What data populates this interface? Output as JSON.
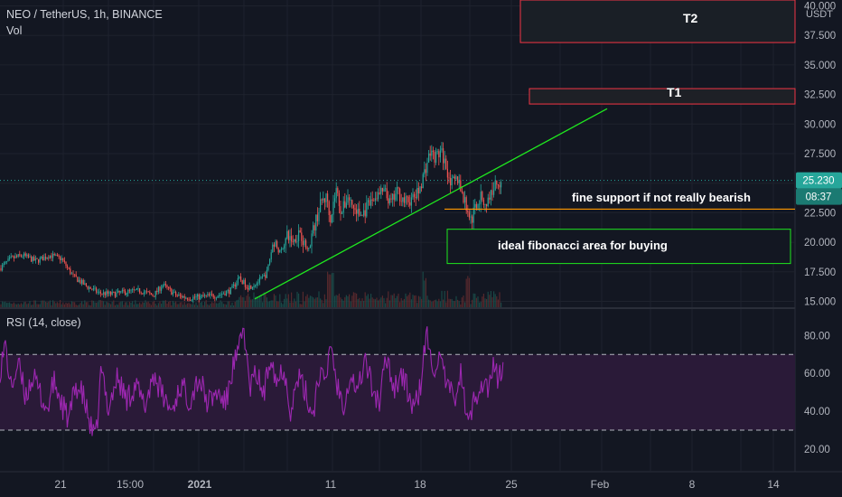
{
  "header": {
    "symbol_title": "NEO / TetherUS, 1h, BINANCE",
    "volume_label": "Vol"
  },
  "price_axis": {
    "currency": "USDT",
    "ticks": [
      "40.000",
      "37.500",
      "35.000",
      "32.500",
      "30.000",
      "27.500",
      "25.000",
      "22.500",
      "20.000",
      "17.500",
      "15.000"
    ],
    "last_price": "25.230",
    "countdown": "08:37"
  },
  "rsi": {
    "label": "RSI (14, close)",
    "ticks": [
      "80.00",
      "60.00",
      "40.00",
      "20.00"
    ],
    "upper_band": 70,
    "lower_band": 30
  },
  "time_axis": {
    "labels": [
      "21",
      "15:00",
      "2021",
      "11",
      "18",
      "25",
      "Feb",
      "8",
      "14"
    ]
  },
  "annotations": {
    "t1": "T1",
    "t2": "T2",
    "support_note": "fine support if not really bearish",
    "fib_note": "ideal fibonacci area for buying"
  },
  "colors": {
    "background": "#131722",
    "up": "#26a69a",
    "down": "#ef5350",
    "trendline": "#1fe81f",
    "rsi_line": "#9c27b0",
    "rsi_fill": "#2a1a38",
    "target_box": "#f23645",
    "fib_box": "#1fe81f",
    "support_line": "#ff9800",
    "last_price_tag": "#26a69a",
    "last_price_dotted": "#26a69a"
  },
  "chart_data": {
    "type": "candlestick",
    "symbol": "NEO / TetherUS",
    "interval": "1h",
    "exchange": "BINANCE",
    "ylim": [
      14.5,
      40.5
    ],
    "last_price": 25.23,
    "price_path": [
      [
        0,
        17.8
      ],
      [
        12,
        18.6
      ],
      [
        25,
        18.9
      ],
      [
        40,
        18.4
      ],
      [
        55,
        18.9
      ],
      [
        68,
        18.6
      ],
      [
        80,
        17.2
      ],
      [
        95,
        16.3
      ],
      [
        110,
        15.7
      ],
      [
        125,
        15.6
      ],
      [
        140,
        15.8
      ],
      [
        155,
        15.9
      ],
      [
        170,
        15.5
      ],
      [
        180,
        16.4
      ],
      [
        195,
        15.5
      ],
      [
        210,
        15.3
      ],
      [
        225,
        15.4
      ],
      [
        240,
        15.5
      ],
      [
        255,
        15.9
      ],
      [
        265,
        16.9
      ],
      [
        275,
        16.2
      ],
      [
        285,
        16.6
      ],
      [
        295,
        17.3
      ],
      [
        303,
        20.2
      ],
      [
        310,
        19.1
      ],
      [
        318,
        20.5
      ],
      [
        325,
        20.1
      ],
      [
        332,
        21.0
      ],
      [
        340,
        19.3
      ],
      [
        348,
        21.4
      ],
      [
        356,
        23.5
      ],
      [
        362,
        23.8
      ],
      [
        366,
        22.0
      ],
      [
        372,
        24.5
      ],
      [
        378,
        22.5
      ],
      [
        385,
        23.9
      ],
      [
        392,
        22.8
      ],
      [
        400,
        22.2
      ],
      [
        408,
        23.1
      ],
      [
        416,
        23.9
      ],
      [
        425,
        24.3
      ],
      [
        432,
        23.2
      ],
      [
        440,
        24.3
      ],
      [
        448,
        23.4
      ],
      [
        456,
        23.6
      ],
      [
        463,
        24.2
      ],
      [
        470,
        26.0
      ],
      [
        476,
        27.6
      ],
      [
        482,
        27.2
      ],
      [
        488,
        27.7
      ],
      [
        493,
        26.6
      ],
      [
        500,
        24.9
      ],
      [
        507,
        25.4
      ],
      [
        513,
        23.7
      ],
      [
        518,
        22.6
      ],
      [
        522,
        21.8
      ],
      [
        526,
        23.1
      ],
      [
        532,
        23.8
      ],
      [
        538,
        23.2
      ],
      [
        544,
        24.2
      ],
      [
        549,
        25.0
      ],
      [
        555,
        25.23
      ]
    ],
    "rsi_path": [
      [
        0,
        62
      ],
      [
        6,
        75
      ],
      [
        12,
        52
      ],
      [
        20,
        65
      ],
      [
        28,
        48
      ],
      [
        36,
        58
      ],
      [
        44,
        50
      ],
      [
        52,
        40
      ],
      [
        60,
        56
      ],
      [
        68,
        44
      ],
      [
        76,
        35
      ],
      [
        84,
        54
      ],
      [
        92,
        48
      ],
      [
        100,
        32
      ],
      [
        106,
        24
      ],
      [
        112,
        62
      ],
      [
        120,
        42
      ],
      [
        130,
        58
      ],
      [
        140,
        46
      ],
      [
        150,
        54
      ],
      [
        160,
        42
      ],
      [
        170,
        60
      ],
      [
        180,
        48
      ],
      [
        190,
        40
      ],
      [
        200,
        54
      ],
      [
        210,
        46
      ],
      [
        220,
        58
      ],
      [
        230,
        44
      ],
      [
        240,
        50
      ],
      [
        250,
        44
      ],
      [
        258,
        64
      ],
      [
        264,
        70
      ],
      [
        270,
        85
      ],
      [
        276,
        52
      ],
      [
        284,
        60
      ],
      [
        292,
        48
      ],
      [
        300,
        72
      ],
      [
        306,
        55
      ],
      [
        314,
        64
      ],
      [
        322,
        40
      ],
      [
        330,
        58
      ],
      [
        338,
        50
      ],
      [
        346,
        38
      ],
      [
        354,
        62
      ],
      [
        360,
        52
      ],
      [
        366,
        78
      ],
      [
        372,
        56
      ],
      [
        380,
        44
      ],
      [
        388,
        60
      ],
      [
        396,
        50
      ],
      [
        404,
        68
      ],
      [
        412,
        52
      ],
      [
        420,
        44
      ],
      [
        428,
        70
      ],
      [
        436,
        52
      ],
      [
        444,
        60
      ],
      [
        452,
        50
      ],
      [
        458,
        40
      ],
      [
        466,
        54
      ],
      [
        472,
        82
      ],
      [
        478,
        62
      ],
      [
        486,
        68
      ],
      [
        494,
        54
      ],
      [
        502,
        46
      ],
      [
        510,
        60
      ],
      [
        518,
        32
      ],
      [
        524,
        44
      ],
      [
        532,
        56
      ],
      [
        540,
        52
      ],
      [
        546,
        62
      ],
      [
        552,
        58
      ],
      [
        557,
        62
      ]
    ],
    "series": [
      {
        "name": "T1",
        "type": "target_zone",
        "y_range": [
          31.7,
          33.0
        ]
      },
      {
        "name": "T2",
        "type": "target_zone",
        "y_range": [
          36.9,
          40.5
        ]
      },
      {
        "name": "fine support if not really bearish",
        "type": "horizontal_line",
        "y": 22.8
      },
      {
        "name": "ideal fibonacci area for buying",
        "type": "zone",
        "y_range": [
          18.2,
          21.1
        ]
      },
      {
        "name": "trendline",
        "type": "line",
        "from_price": 15.2,
        "to_price": 31.3
      }
    ],
    "grid": true
  }
}
